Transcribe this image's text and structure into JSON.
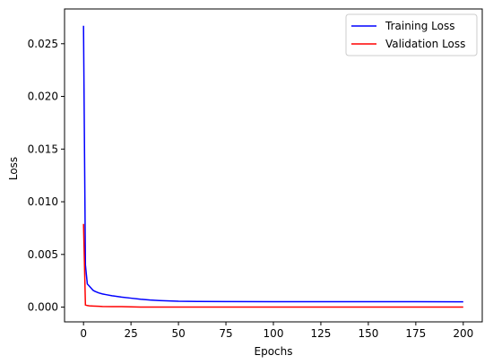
{
  "chart_data": {
    "type": "line",
    "title": "",
    "xlabel": "Epochs",
    "ylabel": "Loss",
    "xlim": [
      -10,
      210
    ],
    "ylim": [
      -0.0014,
      0.0283
    ],
    "xticks": [
      0,
      25,
      50,
      75,
      100,
      125,
      150,
      175,
      200
    ],
    "yticks": [
      0.0,
      0.005,
      0.01,
      0.015,
      0.02,
      0.025
    ],
    "ytick_labels": [
      "0.000",
      "0.005",
      "0.010",
      "0.015",
      "0.020",
      "0.025"
    ],
    "xtick_labels": [
      "0",
      "25",
      "50",
      "75",
      "100",
      "125",
      "150",
      "175",
      "200"
    ],
    "grid": false,
    "legend_position": "top-right",
    "series": [
      {
        "name": "Training Loss",
        "color": "#0000ff",
        "x": [
          0,
          1,
          2,
          3,
          4,
          5,
          6,
          8,
          10,
          12,
          15,
          20,
          25,
          30,
          35,
          40,
          50,
          60,
          75,
          100,
          125,
          150,
          175,
          200
        ],
        "y": [
          0.0267,
          0.004,
          0.0022,
          0.002,
          0.0018,
          0.0016,
          0.0015,
          0.00135,
          0.00125,
          0.00118,
          0.00108,
          0.00095,
          0.00085,
          0.00075,
          0.00067,
          0.00062,
          0.00056,
          0.00054,
          0.00053,
          0.00052,
          0.00052,
          0.00052,
          0.00051,
          0.0005
        ]
      },
      {
        "name": "Validation Loss",
        "color": "#ff0000",
        "x": [
          0,
          1,
          2,
          3,
          5,
          8,
          10,
          15,
          20,
          25,
          30,
          40,
          50,
          75,
          100,
          125,
          150,
          175,
          200
        ],
        "y": [
          0.0079,
          0.0002,
          0.00015,
          0.00012,
          0.0001,
          8e-05,
          6e-05,
          5e-05,
          5e-05,
          2e-05,
          0.0,
          0.0,
          0.0,
          0.0,
          0.0,
          0.0,
          0.0,
          0.0,
          0.0
        ]
      }
    ]
  }
}
